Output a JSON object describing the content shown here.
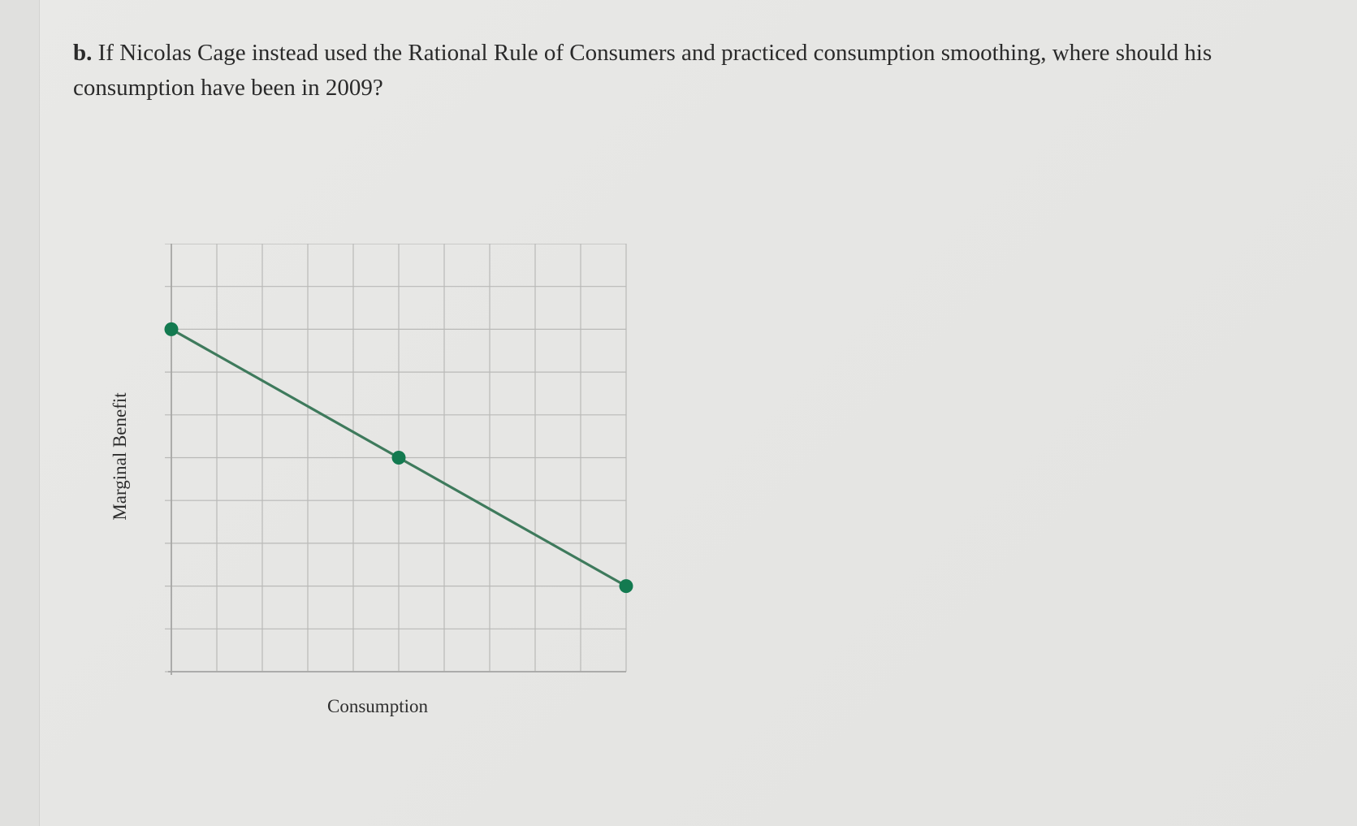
{
  "question": {
    "label": "b.",
    "text": "If Nicolas Cage instead used the Rational Rule of Consumers and practiced consumption smoothing, where should his consumption have been in 2009?"
  },
  "colors": {
    "line": "#3e7a5c",
    "point": "#137a50",
    "grid": "#b9b9b7"
  },
  "chart_data": {
    "type": "line",
    "title": "",
    "xlabel": "Consumption",
    "ylabel": "Marginal Benefit",
    "xlim": [
      0,
      10
    ],
    "ylim": [
      0,
      10
    ],
    "grid": true,
    "tick_labels": false,
    "series": [
      {
        "name": "",
        "x": [
          0,
          5,
          10
        ],
        "y": [
          8,
          5,
          2
        ],
        "markers": true
      }
    ]
  }
}
